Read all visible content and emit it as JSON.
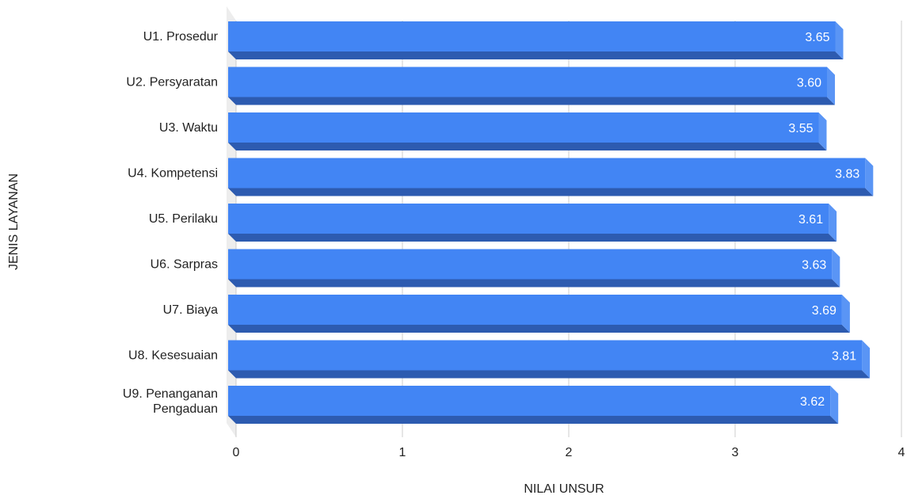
{
  "chart_data": {
    "type": "bar",
    "orientation": "horizontal",
    "style": "3d",
    "title": "",
    "xlabel": "NILAI UNSUR",
    "ylabel": "JENIS LAYANAN",
    "categories": [
      "U1. Prosedur",
      "U2. Persyaratan",
      "U3. Waktu",
      "U4. Kompetensi",
      "U5. Perilaku",
      "U6. Sarpras",
      "U7. Biaya",
      "U8. Kesesuaian",
      "U9. Penanganan Pengaduan"
    ],
    "values": [
      3.65,
      3.6,
      3.55,
      3.83,
      3.61,
      3.63,
      3.69,
      3.81,
      3.62
    ],
    "data_labels": [
      "3.65",
      "3.60",
      "3.55",
      "3.83",
      "3.61",
      "3.63",
      "3.69",
      "3.81",
      "3.62"
    ],
    "xlim": [
      0,
      4
    ],
    "xticks": [
      "0",
      "1",
      "2",
      "3",
      "4"
    ],
    "grid": true,
    "legend": "none",
    "colors": {
      "bar_front": "#4285f4",
      "bar_bottom": "#2d5bb0",
      "bar_side": "#5a95f5",
      "label_text": "#ffffff",
      "grid": "#cccccc",
      "wall": "#ededed"
    }
  }
}
